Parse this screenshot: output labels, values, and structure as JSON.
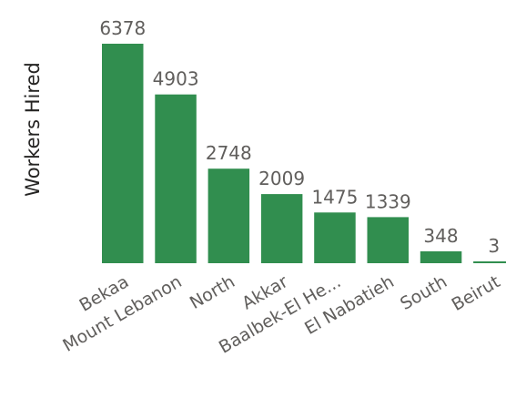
{
  "chart_data": {
    "type": "bar",
    "ylabel": "Workers Hired",
    "xlabel": "",
    "categories": [
      "Bekaa",
      "Mount Lebanon",
      "North",
      "Akkar",
      "Baalbek-El He...",
      "El Nabatieh",
      "South",
      "Beirut"
    ],
    "values": [
      6378,
      4903,
      2748,
      2009,
      1475,
      1339,
      348,
      3
    ],
    "data_labels": [
      "6378",
      "4903",
      "2748",
      "2009",
      "1475",
      "1339",
      "348",
      "3"
    ],
    "ylim": [
      0,
      6378
    ],
    "grid": false,
    "bar_color": "#318e4f"
  }
}
